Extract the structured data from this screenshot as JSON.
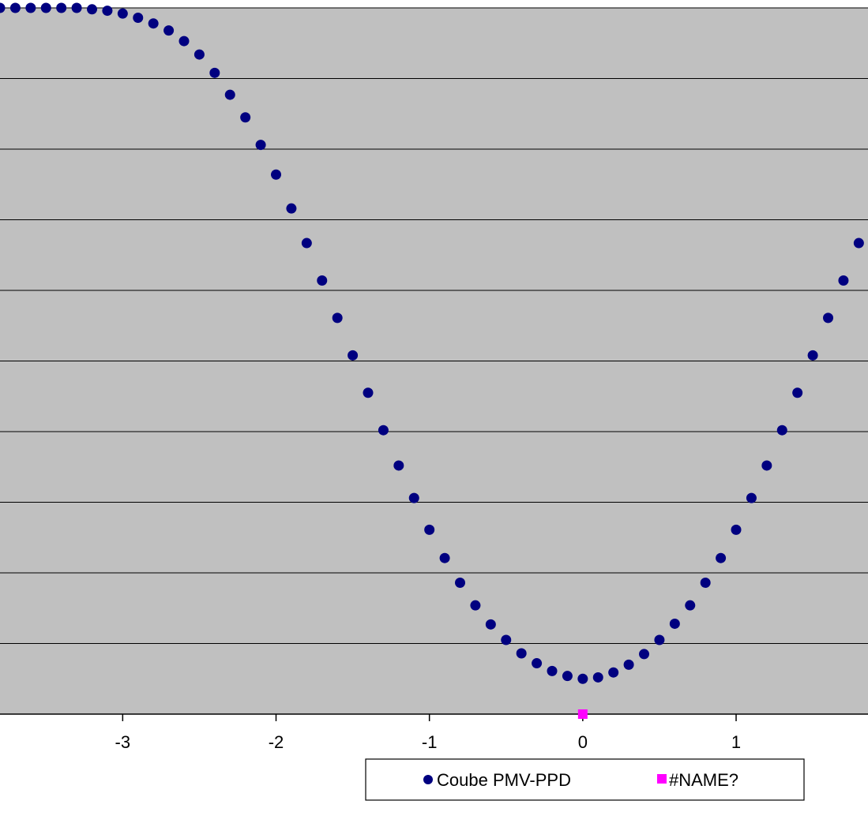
{
  "chart_data": {
    "type": "scatter",
    "title": "",
    "xlabel": "",
    "ylabel": "",
    "xlim": [
      -3.8,
      1.86
    ],
    "ylim": [
      0,
      100
    ],
    "x_ticks": [
      -3,
      -2,
      -1,
      0,
      1
    ],
    "x_tick_labels": [
      "-3",
      "-2",
      "-1",
      "0",
      "1"
    ],
    "y_gridlines": [
      10,
      20,
      30,
      40,
      50,
      60,
      70,
      80,
      90,
      100
    ],
    "grid": true,
    "plot_background": "#c0c0c0",
    "legend_position": "bottom",
    "series": [
      {
        "name": "Coube PMV-PPD",
        "marker": "circle",
        "color": "#000080",
        "x": [
          -3.8,
          -3.7,
          -3.6,
          -3.5,
          -3.4,
          -3.3,
          -3.2,
          -3.1,
          -3.0,
          -2.9,
          -2.8,
          -2.7,
          -2.6,
          -2.5,
          -2.4,
          -2.3,
          -2.2,
          -2.1,
          -2.0,
          -1.9,
          -1.8,
          -1.7,
          -1.6,
          -1.5,
          -1.4,
          -1.3,
          -1.2,
          -1.1,
          -1.0,
          -0.9,
          -0.8,
          -0.7,
          -0.6,
          -0.5,
          -0.4,
          -0.3,
          -0.2,
          -0.1,
          0.0,
          0.1,
          0.2,
          0.3,
          0.4,
          0.5,
          0.6,
          0.7,
          0.8,
          0.9,
          1.0,
          1.1,
          1.2,
          1.3,
          1.4,
          1.5,
          1.6,
          1.7,
          1.8
        ],
        "y": [
          100,
          100,
          100,
          100,
          100,
          100,
          99.8,
          99.6,
          99.2,
          98.6,
          97.8,
          96.8,
          95.3,
          93.4,
          90.8,
          87.7,
          84.5,
          80.6,
          76.4,
          71.6,
          66.7,
          61.4,
          56.1,
          50.8,
          45.5,
          40.2,
          35.2,
          30.6,
          26.1,
          22.1,
          18.6,
          15.4,
          12.7,
          10.5,
          8.6,
          7.2,
          6.1,
          5.4,
          5.0,
          5.2,
          5.9,
          7.0,
          8.5,
          10.5,
          12.8,
          15.4,
          18.6,
          22.1,
          26.1,
          30.6,
          35.2,
          40.2,
          45.5,
          50.8,
          56.1,
          61.4,
          66.7
        ]
      },
      {
        "name": "#NAME?",
        "marker": "square",
        "color": "#ff00ff",
        "x": [
          0.0
        ],
        "y": [
          0
        ]
      }
    ]
  }
}
